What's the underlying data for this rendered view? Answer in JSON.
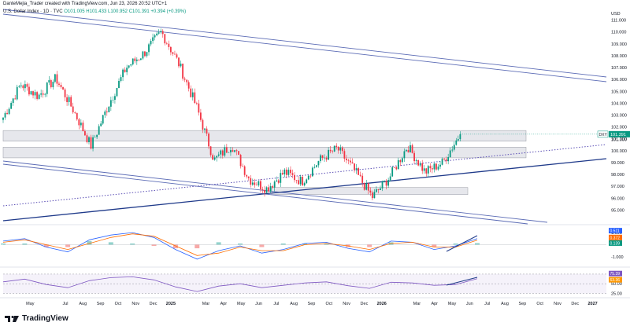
{
  "header": {
    "author_line": "DanteMejia_Trader created with TradingView.com, Jun 23, 2026 20:52 UTC+1",
    "symbol": "U.S. Dollar Index · 1D · TVC",
    "open": "O101.005",
    "high": "H101.433",
    "low": "L100.952",
    "close": "C101.391",
    "change": "+0.394 (+0.39%)"
  },
  "brand": {
    "name": "TradingView"
  },
  "colors": {
    "up": "#089981",
    "down": "#f23645",
    "channel": "#5b6bb5",
    "trendline": "#1f3a8a",
    "zone": "#d1d4dc",
    "macd": "#2962ff",
    "signal": "#ff6d00",
    "rsi": "#7e57c2"
  },
  "chart_data": [
    {
      "type": "candlestick",
      "symbol": "DXY",
      "currency": "USD",
      "price_axis_ticks": [
        95.0,
        96.0,
        97.0,
        98.0,
        99.0,
        100.0,
        101.0,
        102.0,
        103.0,
        104.0,
        105.0,
        106.0,
        107.0,
        108.0,
        109.0,
        110.0,
        111.0
      ],
      "ylim": [
        94.5,
        111.5
      ],
      "time_axis_labels": [
        "May",
        "Jul",
        "Aug",
        "Sep",
        "Oct",
        "Nov",
        "Dec",
        "2025",
        "Mar",
        "Apr",
        "May",
        "Jun",
        "Jul",
        "Aug",
        "Sep",
        "Oct",
        "Nov",
        "Dec",
        "2026",
        "Mar",
        "Apr",
        "May",
        "Jun",
        "Jul",
        "Aug",
        "Sep",
        "Oct",
        "Nov",
        "Dec",
        "2027"
      ],
      "last_price_label": "DXY",
      "last_price": "101.391",
      "current_value_label": "101.000",
      "swing_points": [
        {
          "t": "2024-04",
          "price": 102.8
        },
        {
          "t": "2024-05",
          "price": 105.6
        },
        {
          "t": "2024-06",
          "price": 104.6
        },
        {
          "t": "2024-07",
          "price": 106.1
        },
        {
          "t": "2024-08",
          "price": 103.4
        },
        {
          "t": "2024-09",
          "price": 100.4
        },
        {
          "t": "2024-10",
          "price": 103.9
        },
        {
          "t": "2024-11",
          "price": 107.0
        },
        {
          "t": "2024-12",
          "price": 108.2
        },
        {
          "t": "2025-01",
          "price": 110.0
        },
        {
          "t": "2025-02",
          "price": 107.3
        },
        {
          "t": "2025-03",
          "price": 103.7
        },
        {
          "t": "2025-04",
          "price": 99.2
        },
        {
          "t": "2025-05",
          "price": 100.5
        },
        {
          "t": "2025-06",
          "price": 97.6
        },
        {
          "t": "2025-07",
          "price": 96.8
        },
        {
          "t": "2025-08",
          "price": 98.2
        },
        {
          "t": "2025-09",
          "price": 97.4
        },
        {
          "t": "2025-10",
          "price": 99.2
        },
        {
          "t": "2025-11",
          "price": 100.2
        },
        {
          "t": "2025-12",
          "price": 98.3
        },
        {
          "t": "2026-01",
          "price": 96.1
        },
        {
          "t": "2026-02",
          "price": 97.8
        },
        {
          "t": "2026-03",
          "price": 100.4
        },
        {
          "t": "2026-04",
          "price": 98.2
        },
        {
          "t": "2026-05",
          "price": 99.0
        },
        {
          "t": "2026-06",
          "price": 101.4
        }
      ],
      "drawings": {
        "resistance_zone": [
          100.8,
          101.7
        ],
        "middle_zone": [
          99.4,
          100.3
        ],
        "support_zone": [
          96.3,
          96.9
        ],
        "descending_channel": "two parallel falling lines",
        "rising_trendline": "solid, from lower-left",
        "dotted_trendline": "rising, dotted"
      }
    },
    {
      "type": "line",
      "title": "MACD",
      "axis_ticks": [
        "1.000",
        "-1.000"
      ],
      "value_labels": [
        "0.511",
        "0.372",
        "0.139"
      ],
      "series": [
        {
          "name": "MACD",
          "values": [
            0.3,
            0.5,
            -0.2,
            -0.6,
            0.4,
            0.8,
            1.0,
            0.6,
            -0.4,
            -1.2,
            -0.5,
            -0.1,
            -0.7,
            -0.4,
            0.1,
            0.2,
            -0.3,
            -0.6,
            0.3,
            0.2,
            -0.4,
            -0.1,
            0.5
          ]
        },
        {
          "name": "Signal",
          "values": [
            0.2,
            0.4,
            0.0,
            -0.4,
            0.1,
            0.6,
            0.9,
            0.7,
            -0.1,
            -0.9,
            -0.7,
            -0.2,
            -0.5,
            -0.5,
            0.0,
            0.1,
            -0.1,
            -0.4,
            0.1,
            0.2,
            -0.2,
            -0.2,
            0.37
          ]
        }
      ]
    },
    {
      "type": "line",
      "title": "RSI",
      "axis_ticks": [
        "50.00",
        "25.00"
      ],
      "upper_band": 75.0,
      "value_labels": [
        "75.39",
        "63.36"
      ],
      "series": [
        {
          "name": "RSI",
          "values": [
            55,
            62,
            48,
            40,
            58,
            66,
            68,
            60,
            42,
            30,
            44,
            50,
            40,
            46,
            52,
            55,
            45,
            38,
            54,
            52,
            46,
            48,
            63
          ]
        }
      ]
    }
  ]
}
